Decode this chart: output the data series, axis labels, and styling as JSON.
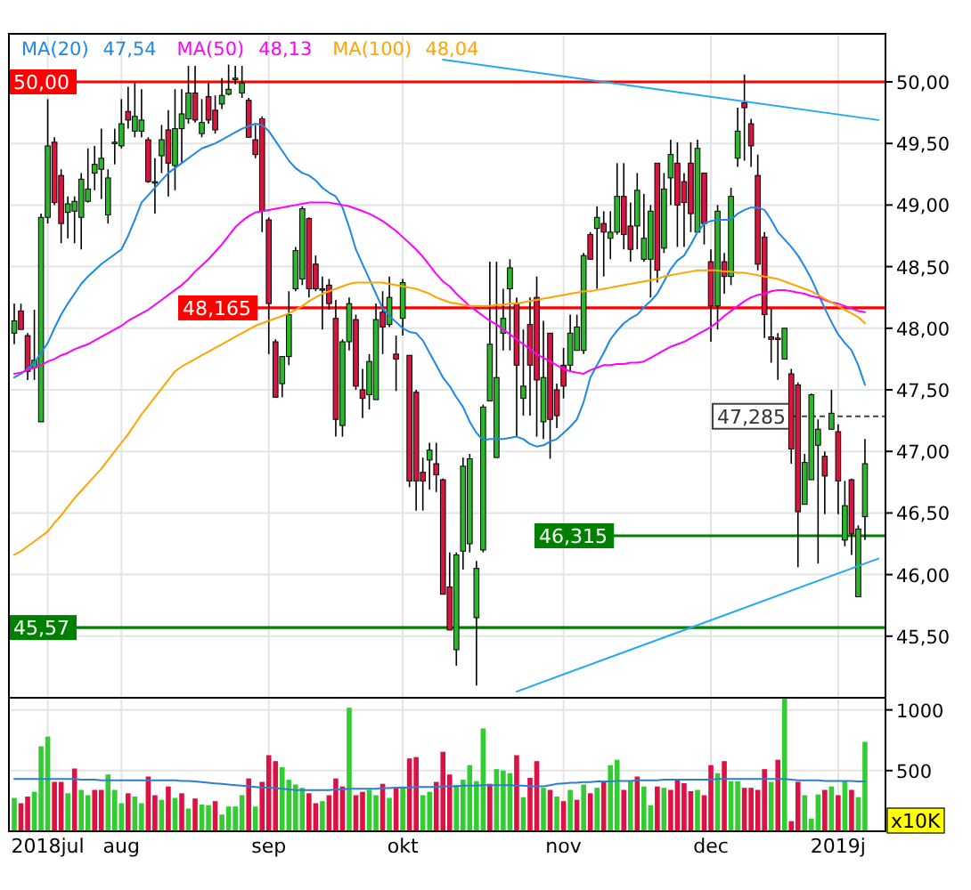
{
  "chart_data": [
    {
      "type": "candlestick",
      "categories": [
        null,
        null,
        null,
        null,
        null,
        null,
        null,
        null,
        null,
        null,
        null,
        null,
        null,
        null,
        null,
        null,
        null,
        null,
        null,
        null,
        null,
        null,
        null,
        null,
        null,
        null,
        null,
        null,
        null,
        null,
        null,
        null,
        null,
        null,
        null,
        null,
        null,
        null,
        null,
        null,
        null,
        null,
        null,
        null,
        null,
        null,
        null,
        null,
        null,
        null,
        null,
        null,
        null,
        null,
        null,
        null,
        null,
        null,
        null,
        null,
        null,
        null,
        null,
        null,
        null,
        null,
        null,
        null,
        null,
        null,
        null,
        null,
        null,
        null,
        null,
        null,
        null,
        null,
        null,
        null,
        null,
        null,
        null,
        null,
        null,
        null,
        null,
        null,
        null,
        null,
        null,
        null,
        null,
        null,
        null,
        null,
        null,
        null,
        null,
        null,
        null,
        null,
        null,
        null,
        null,
        null,
        null,
        null,
        null,
        null,
        null,
        null,
        null,
        null,
        null,
        null,
        null,
        null,
        null,
        null,
        null,
        null,
        null,
        null,
        null,
        null,
        null,
        null,
        null,
        null
      ],
      "ohlc": [
        [
          47.96,
          48.2,
          47.87,
          48.06
        ],
        [
          48.14,
          48.2,
          47.99,
          47.99
        ],
        [
          47.94,
          47.96,
          47.58,
          47.65
        ],
        [
          47.68,
          48.15,
          47.58,
          47.74
        ],
        [
          47.24,
          48.93,
          47.24,
          48.9
        ],
        [
          48.9,
          49.86,
          48.85,
          49.48
        ],
        [
          49.51,
          49.55,
          49.0,
          49.02
        ],
        [
          49.24,
          49.29,
          48.69,
          48.85
        ],
        [
          48.94,
          49.07,
          48.73,
          49.01
        ],
        [
          48.95,
          49.07,
          48.69,
          49.03
        ],
        [
          48.9,
          49.26,
          48.64,
          49.21
        ],
        [
          49.03,
          49.46,
          49.02,
          49.13
        ],
        [
          49.26,
          49.48,
          49.12,
          49.33
        ],
        [
          49.29,
          49.62,
          49.05,
          49.38
        ],
        [
          48.92,
          49.29,
          48.85,
          49.22
        ],
        [
          49.5,
          49.62,
          49.33,
          49.51
        ],
        [
          49.48,
          49.86,
          49.46,
          49.66
        ],
        [
          49.76,
          49.96,
          49.62,
          49.69
        ],
        [
          49.6,
          49.99,
          49.55,
          49.72
        ],
        [
          49.6,
          49.94,
          49.55,
          49.69
        ],
        [
          49.53,
          49.55,
          49.18,
          49.19
        ],
        [
          49.19,
          49.38,
          48.93,
          49.19
        ],
        [
          49.4,
          49.65,
          49.26,
          49.53
        ],
        [
          49.61,
          49.77,
          49.07,
          49.34
        ],
        [
          49.32,
          49.94,
          49.12,
          49.62
        ],
        [
          49.62,
          49.94,
          49.34,
          49.74
        ],
        [
          49.7,
          50.13,
          49.66,
          49.91
        ],
        [
          49.91,
          50.13,
          49.67,
          49.69
        ],
        [
          49.58,
          49.86,
          49.55,
          49.67
        ],
        [
          49.88,
          49.99,
          49.66,
          49.69
        ],
        [
          49.77,
          49.89,
          49.58,
          49.61
        ],
        [
          49.82,
          50.03,
          49.78,
          49.89
        ],
        [
          49.9,
          50.14,
          49.89,
          49.94
        ],
        [
          50.02,
          50.13,
          49.98,
          50.03
        ],
        [
          49.91,
          50.13,
          49.87,
          49.99
        ],
        [
          49.85,
          49.87,
          49.55,
          49.55
        ],
        [
          49.53,
          49.65,
          49.38,
          49.41
        ],
        [
          49.7,
          49.72,
          48.78,
          48.95
        ],
        [
          48.88,
          48.9,
          47.79,
          48.2
        ],
        [
          47.89,
          47.91,
          47.44,
          47.44
        ],
        [
          47.55,
          47.77,
          47.44,
          47.77
        ],
        [
          47.77,
          48.3,
          47.7,
          48.11
        ],
        [
          48.32,
          48.66,
          48.3,
          48.63
        ],
        [
          48.4,
          48.99,
          48.35,
          48.97
        ],
        [
          48.89,
          48.9,
          48.25,
          48.32
        ],
        [
          48.52,
          48.59,
          48.3,
          48.32
        ],
        [
          48.32,
          48.42,
          47.99,
          48.31
        ],
        [
          48.35,
          48.4,
          48.15,
          48.2
        ],
        [
          48.08,
          48.23,
          47.12,
          47.26
        ],
        [
          47.21,
          47.91,
          47.12,
          47.89
        ],
        [
          47.89,
          48.25,
          47.82,
          48.2
        ],
        [
          48.07,
          48.11,
          47.5,
          47.53
        ],
        [
          47.5,
          47.67,
          47.27,
          47.43
        ],
        [
          47.46,
          47.79,
          47.34,
          47.73
        ],
        [
          47.42,
          48.2,
          47.42,
          48.07
        ],
        [
          48.13,
          48.3,
          47.79,
          48.01
        ],
        [
          48.03,
          48.42,
          48.01,
          48.25
        ],
        [
          47.79,
          47.94,
          47.49,
          47.75
        ],
        [
          48.08,
          48.4,
          47.94,
          48.37
        ],
        [
          47.78,
          47.78,
          46.71,
          46.76
        ],
        [
          47.48,
          47.5,
          46.52,
          46.76
        ],
        [
          46.83,
          46.95,
          46.52,
          46.76
        ],
        [
          46.93,
          47.07,
          46.69,
          47.01
        ],
        [
          46.9,
          47.07,
          46.67,
          46.81
        ],
        [
          46.77,
          46.78,
          45.84,
          45.84
        ],
        [
          45.9,
          46.18,
          45.55,
          45.55
        ],
        [
          45.39,
          46.18,
          45.26,
          46.16
        ],
        [
          46.19,
          46.95,
          46.04,
          46.88
        ],
        [
          46.25,
          46.98,
          46.18,
          46.94
        ],
        [
          45.65,
          46.11,
          45.1,
          46.05
        ],
        [
          46.2,
          47.38,
          46.18,
          47.36
        ],
        [
          47.41,
          48.54,
          47.41,
          47.87
        ],
        [
          46.95,
          48.54,
          46.95,
          47.6
        ],
        [
          47.96,
          48.32,
          47.82,
          48.08
        ],
        [
          48.32,
          48.56,
          47.82,
          48.49
        ],
        [
          48.2,
          48.25,
          47.12,
          47.7
        ],
        [
          47.43,
          47.99,
          47.29,
          47.53
        ],
        [
          48.03,
          48.25,
          47.29,
          47.7
        ],
        [
          48.25,
          48.42,
          47.12,
          47.58
        ],
        [
          47.24,
          48.06,
          47.1,
          47.6
        ],
        [
          47.96,
          47.96,
          46.94,
          47.26
        ],
        [
          47.5,
          47.55,
          47.19,
          47.29
        ],
        [
          47.7,
          47.84,
          47.43,
          47.53
        ],
        [
          47.7,
          48.11,
          47.65,
          47.96
        ],
        [
          47.82,
          48.11,
          47.82,
          48.01
        ],
        [
          47.82,
          48.61,
          47.79,
          48.59
        ],
        [
          48.76,
          48.78,
          48.56,
          48.56
        ],
        [
          48.81,
          48.99,
          48.32,
          48.9
        ],
        [
          48.85,
          48.95,
          48.42,
          48.78
        ],
        [
          48.73,
          48.95,
          48.56,
          48.78
        ],
        [
          48.78,
          49.34,
          48.76,
          49.07
        ],
        [
          49.07,
          49.34,
          48.64,
          48.76
        ],
        [
          48.83,
          49.02,
          48.54,
          48.64
        ],
        [
          48.83,
          49.26,
          48.64,
          49.12
        ],
        [
          48.56,
          49.09,
          48.54,
          48.73
        ],
        [
          48.56,
          49.0,
          48.25,
          48.95
        ],
        [
          49.34,
          49.34,
          48.37,
          48.47
        ],
        [
          48.65,
          49.26,
          48.61,
          49.13
        ],
        [
          49.22,
          49.53,
          49.0,
          49.41
        ],
        [
          49.34,
          49.51,
          48.66,
          49.0
        ],
        [
          49.19,
          49.26,
          48.66,
          49.02
        ],
        [
          49.34,
          49.51,
          48.78,
          48.93
        ],
        [
          48.78,
          49.53,
          48.78,
          49.46
        ],
        [
          49.26,
          49.26,
          48.68,
          48.85
        ],
        [
          48.54,
          48.64,
          47.89,
          48.18
        ],
        [
          48.18,
          49.0,
          47.99,
          48.95
        ],
        [
          48.54,
          48.61,
          48.28,
          48.42
        ],
        [
          48.42,
          49.14,
          48.35,
          49.07
        ],
        [
          49.38,
          49.79,
          49.31,
          49.6
        ],
        [
          49.83,
          50.06,
          49.36,
          49.79
        ],
        [
          49.66,
          49.7,
          49.31,
          49.48
        ],
        [
          49.24,
          49.41,
          48.47,
          48.52
        ],
        [
          48.74,
          48.78,
          47.92,
          48.11
        ],
        [
          47.93,
          48.16,
          47.72,
          47.91
        ],
        [
          47.92,
          47.96,
          47.58,
          47.91
        ],
        [
          47.75,
          48.0,
          47.75,
          48.0
        ],
        [
          47.63,
          47.67,
          46.9,
          47.02
        ],
        [
          47.54,
          47.56,
          46.06,
          46.51
        ],
        [
          46.57,
          46.98,
          46.57,
          46.91
        ],
        [
          46.77,
          47.47,
          46.77,
          47.46
        ],
        [
          47.05,
          47.26,
          46.09,
          47.18
        ],
        [
          46.96,
          47.0,
          46.49,
          46.8
        ],
        [
          47.18,
          47.5,
          47.18,
          47.31
        ],
        [
          47.16,
          47.22,
          46.49,
          46.76
        ],
        [
          46.28,
          46.76,
          46.23,
          46.56
        ],
        [
          46.77,
          46.78,
          46.16,
          46.33
        ],
        [
          45.82,
          46.4,
          45.82,
          46.37
        ],
        [
          46.47,
          47.1,
          46.28,
          46.9
        ],
        null,
        null
      ],
      "series": [
        {
          "type": "line",
          "name": "MA(20)",
          "color": "#1e88e5",
          "values": [
            47.6,
            47.63,
            47.67,
            47.72,
            47.8,
            47.88,
            48.0,
            48.11,
            48.2,
            48.28,
            48.36,
            48.42,
            48.47,
            48.52,
            48.56,
            48.6,
            48.64,
            48.75,
            48.88,
            49.02,
            49.08,
            49.14,
            49.2,
            49.26,
            49.3,
            49.34,
            49.38,
            49.42,
            49.46,
            49.48,
            49.5,
            49.53,
            49.56,
            49.59,
            49.62,
            49.64,
            49.66,
            49.65,
            49.6,
            49.52,
            49.44,
            49.36,
            49.3,
            49.26,
            49.24,
            49.2,
            49.14,
            49.1,
            49.07,
            48.98,
            48.82,
            48.64,
            48.52,
            48.4,
            48.28,
            48.16,
            48.1,
            48.05,
            48.0,
            47.97,
            47.96,
            47.9,
            47.8,
            47.7,
            47.6,
            47.53,
            47.44,
            47.36,
            47.24,
            47.15,
            47.09,
            47.1,
            47.1,
            47.1,
            47.11,
            47.12,
            47.1,
            47.06,
            47.04,
            47.05,
            47.08,
            47.1,
            47.15,
            47.2,
            47.26,
            47.4,
            47.6,
            47.7,
            47.8,
            47.91,
            47.98,
            48.04,
            48.08,
            48.11,
            48.17,
            48.22,
            48.28,
            48.38,
            48.48,
            48.55,
            48.59,
            48.68,
            48.78,
            48.85,
            48.87,
            48.88,
            48.88,
            48.88,
            48.93,
            48.96,
            48.98,
            48.98,
            48.96,
            48.88,
            48.78,
            48.72,
            48.66,
            48.59,
            48.5,
            48.4,
            48.28,
            48.16,
            48.05,
            47.95,
            47.88,
            47.82,
            47.7,
            47.54,
            null,
            null
          ]
        },
        {
          "type": "line",
          "name": "MA(50)",
          "color": "#ff00ff",
          "values": [
            47.63,
            47.64,
            47.66,
            47.68,
            47.7,
            47.73,
            47.75,
            47.78,
            47.8,
            47.83,
            47.85,
            47.87,
            47.9,
            47.93,
            47.96,
            47.99,
            48.02,
            48.06,
            48.09,
            48.12,
            48.15,
            48.19,
            48.23,
            48.27,
            48.31,
            48.35,
            48.4,
            48.46,
            48.51,
            48.56,
            48.62,
            48.68,
            48.75,
            48.82,
            48.87,
            48.91,
            48.94,
            48.95,
            48.96,
            48.97,
            48.98,
            48.99,
            49.0,
            49.01,
            49.02,
            49.02,
            49.02,
            49.02,
            49.01,
            49.0,
            48.99,
            48.97,
            48.95,
            48.93,
            48.9,
            48.87,
            48.83,
            48.79,
            48.74,
            48.69,
            48.64,
            48.58,
            48.51,
            48.44,
            48.38,
            48.34,
            48.28,
            48.23,
            48.18,
            48.14,
            48.1,
            48.06,
            48.03,
            47.99,
            47.95,
            47.91,
            47.87,
            47.83,
            47.79,
            47.76,
            47.73,
            47.7,
            47.67,
            47.65,
            47.64,
            47.63,
            47.66,
            47.68,
            47.7,
            47.7,
            47.71,
            47.71,
            47.72,
            47.72,
            47.73,
            47.76,
            47.79,
            47.82,
            47.85,
            47.87,
            47.89,
            47.92,
            47.95,
            47.98,
            48.01,
            48.05,
            48.1,
            48.14,
            48.18,
            48.22,
            48.25,
            48.27,
            48.28,
            48.3,
            48.31,
            48.31,
            48.3,
            48.29,
            48.28,
            48.26,
            48.25,
            48.23,
            48.21,
            48.2,
            48.18,
            48.16,
            48.14,
            48.13,
            null,
            null
          ]
        },
        {
          "type": "line",
          "name": "MA(100)",
          "color": "#ffa500",
          "values": [
            46.16,
            46.19,
            46.23,
            46.27,
            46.31,
            46.35,
            46.42,
            46.48,
            46.55,
            46.62,
            46.68,
            46.74,
            46.8,
            46.86,
            46.93,
            47.0,
            47.07,
            47.14,
            47.22,
            47.3,
            47.37,
            47.44,
            47.51,
            47.58,
            47.65,
            47.69,
            47.72,
            47.75,
            47.78,
            47.81,
            47.84,
            47.87,
            47.9,
            47.93,
            47.96,
            47.99,
            48.02,
            48.04,
            48.06,
            48.08,
            48.1,
            48.12,
            48.15,
            48.18,
            48.22,
            48.25,
            48.28,
            48.3,
            48.32,
            48.34,
            48.36,
            48.37,
            48.37,
            48.37,
            48.37,
            48.37,
            48.36,
            48.35,
            48.34,
            48.33,
            48.32,
            48.3,
            48.28,
            48.25,
            48.23,
            48.21,
            48.2,
            48.19,
            48.18,
            48.18,
            48.18,
            48.18,
            48.19,
            48.19,
            48.2,
            48.2,
            48.21,
            48.22,
            48.23,
            48.24,
            48.25,
            48.26,
            48.27,
            48.28,
            48.29,
            48.3,
            48.3,
            48.31,
            48.32,
            48.33,
            48.34,
            48.35,
            48.36,
            48.37,
            48.38,
            48.39,
            48.4,
            48.42,
            48.43,
            48.44,
            48.45,
            48.46,
            48.47,
            48.47,
            48.47,
            48.47,
            48.46,
            48.46,
            48.45,
            48.45,
            48.44,
            48.43,
            48.42,
            48.41,
            48.4,
            48.38,
            48.36,
            48.34,
            48.32,
            48.3,
            48.27,
            48.24,
            48.21,
            48.18,
            48.15,
            48.12,
            48.09,
            48.04,
            null,
            null
          ]
        },
        {
          "type": "line",
          "color": "#22aaee",
          "values": [
            null,
            null,
            null,
            null,
            null,
            null,
            null,
            null,
            null,
            null,
            null,
            null,
            null,
            null,
            null,
            null,
            null,
            null,
            null,
            null,
            null,
            null,
            null,
            null,
            null,
            null,
            null,
            null,
            null,
            null,
            null,
            null,
            null,
            null,
            null,
            null,
            null,
            null,
            null,
            null,
            null,
            null,
            null,
            null,
            null,
            null,
            null,
            null,
            null,
            null,
            null,
            null,
            null,
            null,
            null,
            null,
            null,
            null,
            null,
            null,
            null,
            null,
            null,
            null,
            50.18,
            null,
            null,
            null,
            null,
            null,
            null,
            null,
            null,
            null,
            null,
            null,
            null,
            null,
            null,
            null,
            null,
            null,
            null,
            null,
            null,
            null,
            null,
            null,
            null,
            null,
            null,
            null,
            null,
            null,
            null,
            null,
            null,
            null,
            null,
            null,
            null,
            null,
            null,
            null,
            null,
            null,
            null,
            null,
            null,
            null,
            null,
            null,
            null,
            null,
            null,
            null,
            null,
            null,
            null,
            null,
            null,
            null,
            null,
            null,
            null,
            null,
            null,
            null,
            null,
            49.69
          ]
        },
        {
          "type": "line",
          "color": "#22aaee",
          "values": [
            null,
            null,
            null,
            null,
            null,
            null,
            null,
            null,
            null,
            null,
            null,
            null,
            null,
            null,
            null,
            null,
            null,
            null,
            null,
            null,
            null,
            null,
            null,
            null,
            null,
            null,
            null,
            null,
            null,
            null,
            null,
            null,
            null,
            null,
            null,
            null,
            null,
            null,
            null,
            null,
            null,
            null,
            null,
            null,
            null,
            null,
            null,
            null,
            null,
            null,
            null,
            null,
            null,
            null,
            null,
            null,
            null,
            null,
            null,
            null,
            null,
            null,
            null,
            null,
            null,
            null,
            null,
            null,
            null,
            null,
            null,
            null,
            null,
            null,
            null,
            45.05,
            null,
            null,
            null,
            null,
            null,
            null,
            null,
            null,
            null,
            null,
            null,
            null,
            null,
            null,
            null,
            null,
            null,
            null,
            null,
            null,
            null,
            null,
            null,
            null,
            null,
            null,
            null,
            null,
            null,
            null,
            null,
            null,
            null,
            null,
            null,
            null,
            null,
            null,
            null,
            null,
            null,
            null,
            null,
            null,
            null,
            null,
            null,
            null,
            null,
            null,
            null,
            null,
            null,
            46.13
          ]
        }
      ],
      "ylim": [
        45.0,
        50.39
      ],
      "yticks": [
        {
          "value": 45.5,
          "label": "45,50"
        },
        {
          "value": 46,
          "label": "46,00"
        },
        {
          "value": 46.5,
          "label": "46,50"
        },
        {
          "value": 47,
          "label": "47,00"
        },
        {
          "value": 47.5,
          "label": "47,50"
        },
        {
          "value": 48,
          "label": "48,00"
        },
        {
          "value": 48.5,
          "label": "48,50"
        },
        {
          "value": 49,
          "label": "49,00"
        },
        {
          "value": 49.5,
          "label": "49,50"
        },
        {
          "value": 50,
          "label": "50,00"
        }
      ],
      "grid": true,
      "legend": "top left",
      "tick_labels": "y",
      "ref_lines": [
        {
          "axis": "y",
          "value": 50,
          "label": "50,00",
          "color": "#ff0000"
        },
        {
          "axis": "y",
          "value": 48.165,
          "label": "48,165",
          "color": "#ff0000"
        },
        {
          "axis": "y",
          "value": 47.285,
          "label": "47,285",
          "color": "#444444",
          "line_style": "dashed"
        },
        {
          "axis": "y",
          "value": 46.315,
          "label": "46,315",
          "color": "#008000"
        },
        {
          "axis": "y",
          "value": 45.57,
          "label": "45,57",
          "color": "#008000"
        }
      ],
      "annotations": [
        "47,54",
        "48,13",
        "48,04"
      ]
    },
    {
      "type": "bar",
      "categories": [
        null,
        null,
        null,
        null,
        null,
        "2018jul",
        null,
        null,
        null,
        null,
        null,
        null,
        null,
        null,
        null,
        null,
        "aug",
        null,
        null,
        null,
        null,
        null,
        null,
        null,
        null,
        null,
        null,
        null,
        null,
        null,
        null,
        null,
        null,
        null,
        null,
        null,
        null,
        null,
        "sep",
        null,
        null,
        null,
        null,
        null,
        null,
        null,
        null,
        null,
        null,
        null,
        null,
        null,
        null,
        null,
        null,
        null,
        null,
        null,
        "okt",
        null,
        null,
        null,
        null,
        null,
        null,
        null,
        null,
        null,
        null,
        null,
        null,
        null,
        null,
        null,
        null,
        null,
        null,
        null,
        null,
        null,
        null,
        null,
        "nov",
        null,
        null,
        null,
        null,
        null,
        null,
        null,
        null,
        null,
        null,
        null,
        null,
        null,
        null,
        null,
        null,
        null,
        null,
        null,
        null,
        null,
        "dec",
        null,
        null,
        null,
        null,
        null,
        null,
        null,
        null,
        null,
        null,
        null,
        null,
        null,
        null,
        null,
        null,
        null,
        null,
        "2019j",
        null,
        null,
        null,
        null,
        null,
        null
      ],
      "values": [
        275,
        231,
        286,
        325,
        700,
        780,
        407,
        407,
        313,
        517,
        341,
        297,
        341,
        341,
        468,
        341,
        231,
        313,
        286,
        231,
        451,
        297,
        259,
        369,
        275,
        313,
        187,
        270,
        220,
        215,
        248,
        138,
        204,
        204,
        297,
        435,
        204,
        407,
        627,
        578,
        528,
        424,
        385,
        358,
        313,
        231,
        248,
        297,
        435,
        369,
        1018,
        297,
        325,
        341,
        297,
        391,
        275,
        358,
        369,
        600,
        611,
        297,
        325,
        407,
        655,
        468,
        380,
        424,
        545,
        413,
        847,
        391,
        512,
        500,
        479,
        627,
        281,
        440,
        578,
        358,
        341,
        286,
        248,
        341,
        259,
        385,
        313,
        358,
        407,
        545,
        589,
        341,
        413,
        451,
        369,
        215,
        369,
        358,
        341,
        424,
        396,
        330,
        341,
        297,
        545,
        479,
        578,
        413,
        413,
        358,
        358,
        341,
        512,
        407,
        589,
        1095,
        83,
        407,
        297,
        105,
        303,
        341,
        369,
        297,
        413,
        341,
        281,
        737,
        null,
        null
      ],
      "colors": [
        "#33cc33",
        "#dd1144",
        "#dd1144",
        "#33cc33",
        "#33cc33",
        "#33cc33",
        "#dd1144",
        "#dd1144",
        "#33cc33",
        "#dd1144",
        "#33cc33",
        "#33cc33",
        "#dd1144",
        "#dd1144",
        "#33cc33",
        "#33cc33",
        "#33cc33",
        "#dd1144",
        "#33cc33",
        "#33cc33",
        "#dd1144",
        "#dd1144",
        "#33cc33",
        "#dd1144",
        "#33cc33",
        "#dd1144",
        "#33cc33",
        "#dd1144",
        "#33cc33",
        "#33cc33",
        "#dd1144",
        "#33cc33",
        "#33cc33",
        "#33cc33",
        "#33cc33",
        "#dd1144",
        "#33cc33",
        "#dd1144",
        "#dd1144",
        "#dd1144",
        "#33cc33",
        "#33cc33",
        "#33cc33",
        "#33cc33",
        "#dd1144",
        "#dd1144",
        "#33cc33",
        "#dd1144",
        "#dd1144",
        "#dd1144",
        "#33cc33",
        "#dd1144",
        "#dd1144",
        "#33cc33",
        "#33cc33",
        "#dd1144",
        "#33cc33",
        "#dd1144",
        "#33cc33",
        "#dd1144",
        "#dd1144",
        "#33cc33",
        "#33cc33",
        "#dd1144",
        "#dd1144",
        "#dd1144",
        "#33cc33",
        "#33cc33",
        "#33cc33",
        "#33cc33",
        "#33cc33",
        "#dd1144",
        "#33cc33",
        "#33cc33",
        "#33cc33",
        "#dd1144",
        "#33cc33",
        "#dd1144",
        "#dd1144",
        "#33cc33",
        "#dd1144",
        "#33cc33",
        "#dd1144",
        "#33cc33",
        "#dd1144",
        "#33cc33",
        "#dd1144",
        "#33cc33",
        "#dd1144",
        "#33cc33",
        "#33cc33",
        "#dd1144",
        "#33cc33",
        "#dd1144",
        "#33cc33",
        "#33cc33",
        "#dd1144",
        "#33cc33",
        "#dd1144",
        "#dd1144",
        "#dd1144",
        "#dd1144",
        "#33cc33",
        "#dd1144",
        "#dd1144",
        "#33cc33",
        "#dd1144",
        "#33cc33",
        "#33cc33",
        "#dd1144",
        "#dd1144",
        "#dd1144",
        "#dd1144",
        "#33cc33",
        "#dd1144",
        "#33cc33",
        "#dd1144",
        "#dd1144",
        "#33cc33",
        "#33cc33",
        "#33cc33",
        "#dd1144",
        "#33cc33",
        "#dd1144",
        "#33cc33",
        "#dd1144",
        "#33cc33",
        "#33cc33",
        "#33cc33",
        "#33cc33"
      ],
      "series": [
        {
          "type": "line",
          "color": "#2a7fd4",
          "values": [
            430,
            430,
            430,
            430,
            430,
            430,
            430,
            430,
            430,
            430,
            425,
            425,
            425,
            420,
            420,
            420,
            420,
            420,
            420,
            420,
            420,
            420,
            420,
            420,
            420,
            415,
            415,
            410,
            405,
            400,
            395,
            390,
            385,
            380,
            375,
            370,
            365,
            360,
            360,
            355,
            350,
            345,
            340,
            340,
            340,
            340,
            340,
            340,
            345,
            345,
            350,
            350,
            350,
            350,
            350,
            355,
            355,
            360,
            360,
            360,
            365,
            365,
            365,
            365,
            370,
            370,
            370,
            375,
            375,
            375,
            380,
            380,
            380,
            380,
            380,
            375,
            375,
            370,
            370,
            370,
            380,
            390,
            395,
            400,
            400,
            405,
            405,
            410,
            410,
            410,
            415,
            415,
            415,
            420,
            420,
            420,
            420,
            425,
            425,
            425,
            425,
            425,
            425,
            425,
            425,
            430,
            430,
            430,
            430,
            430,
            430,
            430,
            430,
            430,
            430,
            430,
            425,
            420,
            420,
            420,
            420,
            415,
            415,
            415,
            415,
            415,
            410,
            410,
            null,
            null
          ]
        }
      ],
      "ylim": [
        0,
        1100
      ],
      "yticks": [
        500,
        1000
      ],
      "grid": true,
      "annotations": [
        "x10K"
      ]
    }
  ]
}
